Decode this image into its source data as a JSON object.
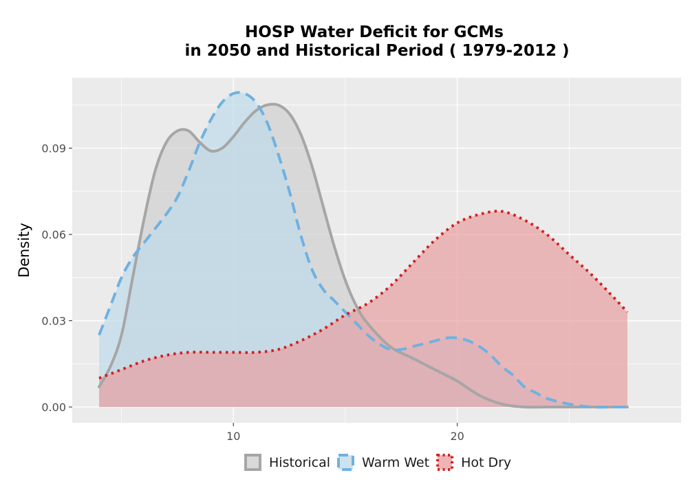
{
  "chart_data": {
    "type": "area",
    "title_line1": "HOSP  Water Deficit for GCMs",
    "title_line2": "in 2050 and Historical Period ( 1979-2012 )",
    "xlabel": "",
    "ylabel": "Density",
    "xlim": [
      2.8,
      30
    ],
    "ylim": [
      -0.0055,
      0.1145
    ],
    "x_ticks": [
      10,
      20
    ],
    "y_ticks": [
      0.0,
      0.03,
      0.06,
      0.09
    ],
    "y_tick_labels": [
      "0.00",
      "0.03",
      "0.06",
      "0.09"
    ],
    "grid": true,
    "legend_position": "bottom",
    "colors": {
      "panel_bg": "#EBEBEB",
      "grid_major": "#FFFFFF",
      "historical_line": "#A6A6A6",
      "historical_fill": "#D0D0D0",
      "warm_wet_line": "#6FB1E0",
      "warm_wet_fill": "#BFDCEB",
      "hot_dry_line": "#D11F1F",
      "hot_dry_fill": "#E8A0A3"
    },
    "series": [
      {
        "name": "Historical",
        "line_style": "solid",
        "x": [
          4.0,
          4.5,
          5.0,
          5.5,
          6.0,
          6.5,
          7.0,
          7.5,
          8.0,
          8.5,
          9.0,
          9.5,
          10.0,
          10.5,
          11.0,
          11.5,
          12.0,
          12.5,
          13.0,
          13.5,
          14.0,
          14.5,
          15.0,
          15.5,
          16.0,
          17.0,
          18.0,
          19.0,
          20.0,
          21.0,
          22.0,
          23.0,
          24.0,
          25.0,
          26.0,
          27.0,
          27.6
        ],
        "y": [
          0.007,
          0.014,
          0.025,
          0.045,
          0.065,
          0.082,
          0.092,
          0.096,
          0.096,
          0.092,
          0.089,
          0.09,
          0.094,
          0.099,
          0.103,
          0.105,
          0.105,
          0.102,
          0.095,
          0.084,
          0.07,
          0.056,
          0.044,
          0.035,
          0.029,
          0.021,
          0.017,
          0.013,
          0.009,
          0.004,
          0.001,
          0.0,
          0.0,
          0.0,
          0.0,
          0.0,
          0.0
        ]
      },
      {
        "name": "Warm Wet",
        "line_style": "dashed",
        "x": [
          4.0,
          4.5,
          5.0,
          5.5,
          6.0,
          6.5,
          7.0,
          7.5,
          8.0,
          8.5,
          9.0,
          9.5,
          10.0,
          10.5,
          11.0,
          11.5,
          12.0,
          12.5,
          13.0,
          13.5,
          14.0,
          14.5,
          15.0,
          15.5,
          16.0,
          16.5,
          17.0,
          17.5,
          18.0,
          18.5,
          19.0,
          19.5,
          20.0,
          20.5,
          21.0,
          21.5,
          22.0,
          22.5,
          23.0,
          23.5,
          24.0,
          25.0,
          26.0,
          27.0,
          27.6
        ],
        "y": [
          0.025,
          0.035,
          0.045,
          0.052,
          0.057,
          0.062,
          0.067,
          0.073,
          0.082,
          0.092,
          0.1,
          0.106,
          0.109,
          0.109,
          0.106,
          0.099,
          0.088,
          0.075,
          0.06,
          0.048,
          0.041,
          0.037,
          0.033,
          0.029,
          0.025,
          0.022,
          0.02,
          0.02,
          0.021,
          0.022,
          0.023,
          0.024,
          0.024,
          0.023,
          0.021,
          0.018,
          0.014,
          0.011,
          0.007,
          0.005,
          0.003,
          0.001,
          0.0,
          0.0,
          0.0
        ]
      },
      {
        "name": "Hot Dry",
        "line_style": "dotted",
        "x": [
          4.0,
          5.0,
          6.0,
          7.0,
          8.0,
          9.0,
          10.0,
          11.0,
          12.0,
          13.0,
          14.0,
          15.0,
          16.0,
          17.0,
          18.0,
          19.0,
          20.0,
          21.0,
          22.0,
          23.0,
          24.0,
          25.0,
          26.0,
          27.0,
          27.6
        ],
        "y": [
          0.01,
          0.013,
          0.016,
          0.018,
          0.019,
          0.019,
          0.019,
          0.019,
          0.02,
          0.023,
          0.027,
          0.032,
          0.036,
          0.042,
          0.05,
          0.058,
          0.064,
          0.067,
          0.068,
          0.065,
          0.06,
          0.053,
          0.046,
          0.038,
          0.033
        ]
      }
    ]
  }
}
